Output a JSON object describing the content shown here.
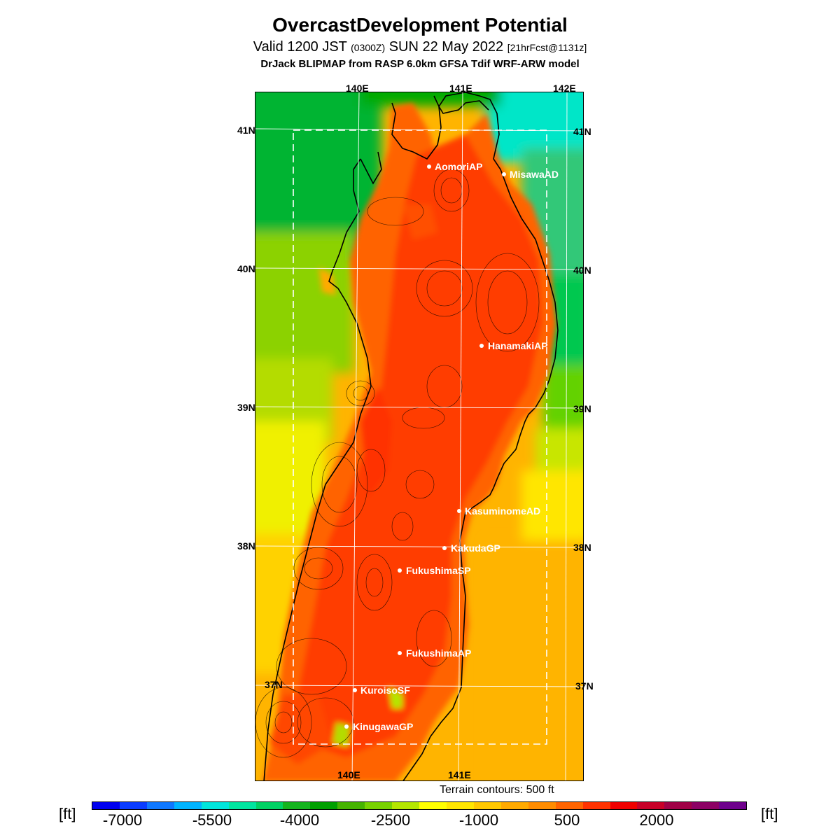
{
  "header": {
    "title": "OvercastDevelopment Potential",
    "valid_prefix": "Valid 1200 JST",
    "valid_zulu": "(0300Z)",
    "valid_date": "SUN 22 May 2022",
    "forecast": "[21hrFcst@1131z]",
    "model": "DrJack BLIPMAP from RASP 6.0km GFSA Tdif WRF-ARW model"
  },
  "map": {
    "lon_labels_top": [
      "140E",
      "141E",
      "142E"
    ],
    "lon_labels_bottom": [
      "140E",
      "141E"
    ],
    "lat_labels_left": [
      "41N",
      "40N",
      "39N",
      "38N",
      "37N"
    ],
    "lat_labels_right": [
      "41N",
      "40N",
      "39N",
      "38N",
      "37N"
    ],
    "terrain_note": "Terrain contours: 500 ft",
    "sites": [
      {
        "name": "AomoriAP"
      },
      {
        "name": "MisawaAD"
      },
      {
        "name": "HanamakiAP"
      },
      {
        "name": "KasuminomeAD"
      },
      {
        "name": "KakudaGP"
      },
      {
        "name": "FukushimaSP"
      },
      {
        "name": "FukushimaAP"
      },
      {
        "name": "KuroisoSF"
      },
      {
        "name": "KinugawaGP"
      }
    ]
  },
  "colorbar": {
    "unit_left": "[ft]",
    "unit_right": "[ft]",
    "tick_labels": [
      "-7000",
      "-5500",
      "-4000",
      "-2500",
      "-1000",
      "500",
      "2000"
    ],
    "colors": [
      "#0000f0",
      "#0a3cff",
      "#0f78ff",
      "#00b4ff",
      "#00e6dc",
      "#00e6a0",
      "#00d264",
      "#14b41e",
      "#00a000",
      "#46b400",
      "#78d200",
      "#b4e600",
      "#ffff00",
      "#ffe600",
      "#ffc800",
      "#ffaa00",
      "#ff8c00",
      "#ff6400",
      "#ff3200",
      "#f00000",
      "#c80028",
      "#a00046",
      "#8c0064",
      "#6e008c"
    ]
  },
  "chart_data": {
    "type": "heatmap",
    "title": "OvercastDevelopment Potential",
    "unit": "ft",
    "colorbar_range": [
      -8000,
      3500
    ],
    "colorbar_ticks": [
      -7000,
      -5500,
      -4000,
      -2500,
      -1000,
      500,
      2000
    ],
    "lon_ticks": [
      140,
      141,
      142
    ],
    "lat_ticks": [
      37,
      38,
      39,
      40,
      41
    ]
  }
}
